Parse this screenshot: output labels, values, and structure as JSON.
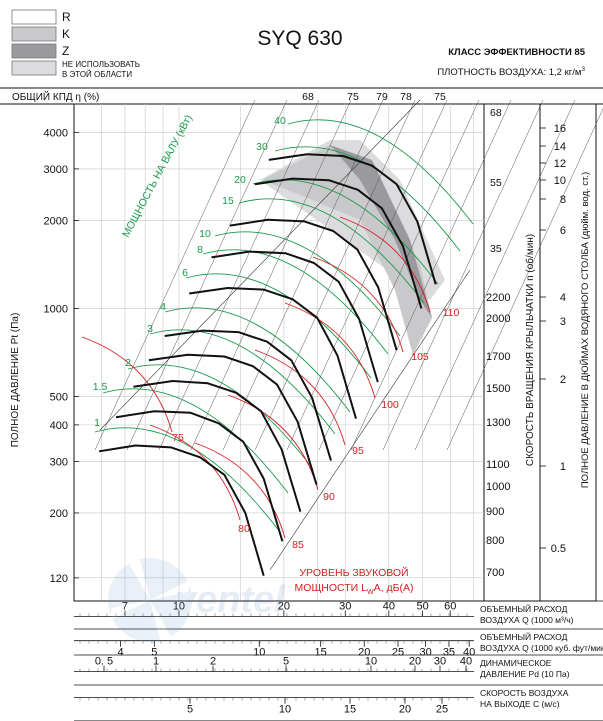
{
  "chart_data": {
    "type": "line",
    "title": "SYQ 630",
    "efficiency_class": "КЛАСС ЭФФЕКТИВНОСТИ 85",
    "air_density_prefix": "ПЛОТНОСТЬ ВОЗДУХА: 1,2 кг/м",
    "air_density_sup": "3",
    "legend": [
      {
        "key": "R",
        "label": "R",
        "color": "#ffffff"
      },
      {
        "key": "K",
        "label": "K",
        "color": "#c9c9cb"
      },
      {
        "key": "Z",
        "label": "Z",
        "color": "#9a9a9e"
      },
      {
        "key": "N",
        "label": "НЕ ИСПОЛЬЗОВАТЬ\nВ ЭТОЙ ОБЛАСТИ",
        "color": "#dcdcdf"
      }
    ],
    "efficiency_axis_label": "ОБЩИЙ КПД η (%)",
    "efficiency_top_labels": [
      "68",
      "75",
      "79",
      "78",
      "75"
    ],
    "efficiency_right_labels": [
      "68",
      "55",
      "35"
    ],
    "power_title": "МОЩНОСТЬ\nНА ВАЛУ (кВт)",
    "power_labels": [
      "1",
      "1.5",
      "2",
      "3",
      "4",
      "6",
      "8",
      "10",
      "15",
      "20",
      "30",
      "40"
    ],
    "noise_title": "УРОВЕНЬ ЗВУКОВОЙ",
    "noise_title_line2": "МОЩНОСТИ L",
    "noise_title_sub": "W",
    "noise_title_suffix": "A, дБ(A)",
    "noise_labels": [
      "75",
      "80",
      "85",
      "90",
      "95",
      "100",
      "105",
      "110"
    ],
    "ylabel": "ПОЛНОЕ ДАВЛЕНИЕ Pt (Па)",
    "y_ticks": [
      "4000",
      "3000",
      "2000",
      "1000",
      "500",
      "400",
      "300",
      "200",
      "120"
    ],
    "ylim": [
      100,
      5000
    ],
    "rpm_label": "СКОРОСТЬ ВРАЩЕНИЯ КРЫЛЬЧАТКИ  n (об/мин)",
    "rpm_ticks": [
      "2200",
      "2000",
      "1700",
      "1500",
      "1300",
      "1100",
      "1000",
      "900",
      "800",
      "700"
    ],
    "inch_label": "ПОЛНОЕ ДАВЛЕНИЕ В ДЮЙМАХ ВОДЯНОГО СТОЛБА (дюйм. вод. ст.)",
    "inch_ticks": [
      "16",
      "14",
      "12",
      "10",
      "8",
      "6",
      "4",
      "3",
      "2",
      "1",
      "0.5"
    ],
    "x_axes": [
      {
        "label1": "ОБЪЕМНЫЙ РАСХОД",
        "label2": "ВОЗДУХА Q (1000 м³/ч)",
        "ticks": [
          "7",
          "10",
          "20",
          "30",
          "40",
          "50",
          "60"
        ]
      },
      {
        "label1": "ОБЪЕМНЫЙ РАСХОД",
        "label2": "ВОЗДУХА Q (1000 куб. фут/мин)",
        "ticks": [
          "4",
          "5",
          "10",
          "15",
          "20",
          "25",
          "30",
          "35",
          "40"
        ]
      },
      {
        "label1": "ДИНАМИЧЕСКОЕ",
        "label2": "ДАВЛЕНИЕ Pd (10 Па)",
        "ticks": [
          "0. 5",
          "1",
          "2",
          "5",
          "10",
          "20",
          "30",
          "40"
        ]
      },
      {
        "label1": "СКОРОСТЬ ВОЗДУХА",
        "label2": "НА ВЫХОДЕ С (м/с)",
        "ticks": [
          "5",
          "10",
          "15",
          "20",
          "25"
        ]
      }
    ],
    "xlim_m3h": [
      5,
      75
    ],
    "series": [
      {
        "rpm": 700,
        "x": [
          5.9,
          7.5,
          9.5,
          11.5,
          13.5,
          15.5,
          17.5
        ],
        "y": [
          325,
          340,
          335,
          310,
          270,
          200,
          122
        ]
      },
      {
        "rpm": 800,
        "x": [
          6.6,
          8.5,
          10.8,
          13,
          15.3,
          17.5,
          19.8
        ],
        "y": [
          425,
          445,
          440,
          405,
          350,
          262,
          160
        ]
      },
      {
        "rpm": 900,
        "x": [
          7.4,
          9.6,
          12.1,
          14.6,
          17.2,
          19.7,
          22.3
        ],
        "y": [
          540,
          565,
          555,
          515,
          445,
          330,
          202
        ]
      },
      {
        "rpm": 1000,
        "x": [
          8.2,
          10.6,
          13.5,
          16.3,
          19.1,
          21.9,
          24.8
        ],
        "y": [
          665,
          695,
          685,
          635,
          550,
          410,
          250
        ]
      },
      {
        "rpm": 1100,
        "x": [
          9.1,
          11.7,
          14.8,
          17.9,
          21,
          24.1,
          27.3
        ],
        "y": [
          805,
          840,
          830,
          770,
          665,
          495,
          302
        ]
      },
      {
        "rpm": 1300,
        "x": [
          10.7,
          13.8,
          17.5,
          21.2,
          24.9,
          28.5,
          32.2
        ],
        "y": [
          1125,
          1175,
          1160,
          1075,
          930,
          690,
          420
        ]
      },
      {
        "rpm": 1500,
        "x": [
          12.4,
          15.9,
          20.2,
          24.4,
          28.7,
          32.9,
          37.2
        ],
        "y": [
          1495,
          1565,
          1545,
          1430,
          1235,
          920,
          560
        ]
      },
      {
        "rpm": 1700,
        "x": [
          14,
          18,
          22.9,
          27.7,
          32.5,
          37.3,
          42.1
        ],
        "y": [
          1920,
          2010,
          1985,
          1840,
          1590,
          1180,
          720
        ]
      },
      {
        "rpm": 2000,
        "x": [
          16.5,
          21.2,
          26.9,
          32.6,
          38.2,
          43.9,
          49.6
        ],
        "y": [
          2660,
          2780,
          2745,
          2545,
          2200,
          1635,
          1000
        ]
      },
      {
        "rpm": 2200,
        "x": [
          18.1,
          23.3,
          29.6,
          35.8,
          42.1,
          48.3,
          54.5
        ],
        "y": [
          3220,
          3365,
          3320,
          3080,
          2660,
          1980,
          1210
        ]
      }
    ]
  }
}
